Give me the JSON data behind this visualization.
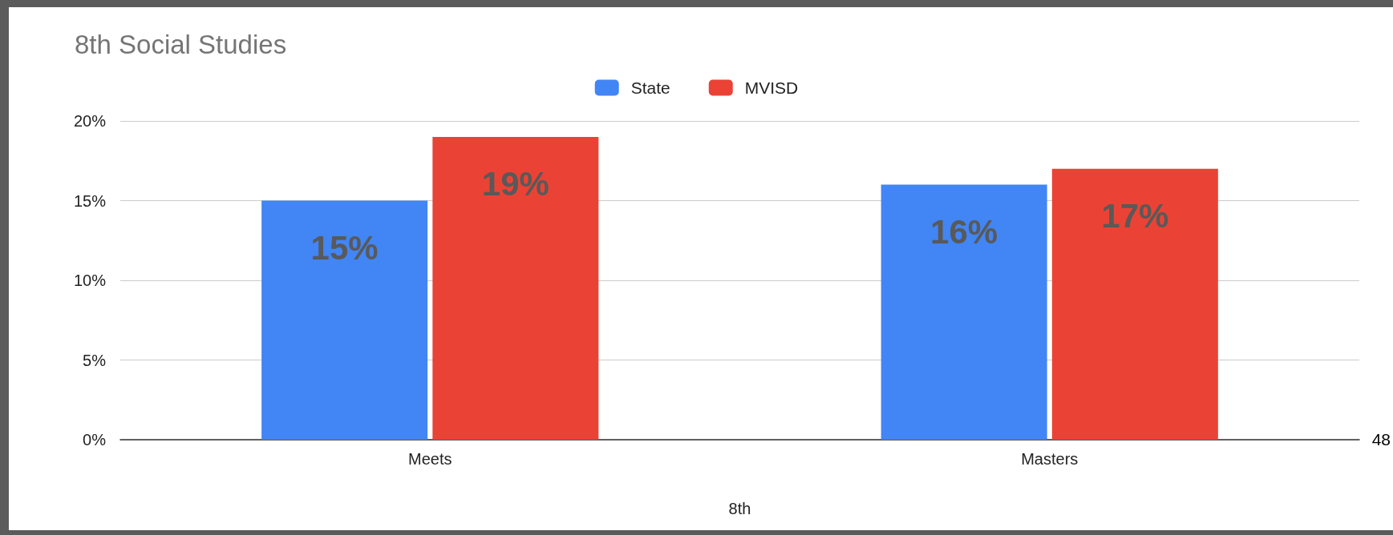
{
  "chart_data": {
    "type": "bar",
    "title": "8th Social Studies",
    "xlabel": "8th",
    "categories": [
      "Meets",
      "Masters"
    ],
    "series": [
      {
        "name": "State",
        "color": "#4285f4",
        "values": [
          15,
          16
        ],
        "value_labels": [
          "15%",
          "16%"
        ]
      },
      {
        "name": "MVISD",
        "color": "#ea4335",
        "values": [
          19,
          17
        ],
        "value_labels": [
          "19%",
          "17%"
        ]
      }
    ],
    "ylim": [
      0,
      20
    ],
    "yticks": [
      {
        "value": 0,
        "label": "0%"
      },
      {
        "value": 5,
        "label": "5%"
      },
      {
        "value": 10,
        "label": "10%"
      },
      {
        "value": 15,
        "label": "15%"
      },
      {
        "value": 20,
        "label": "20%"
      }
    ],
    "grid": "y",
    "legend": "top",
    "annotations": [
      "48"
    ]
  }
}
